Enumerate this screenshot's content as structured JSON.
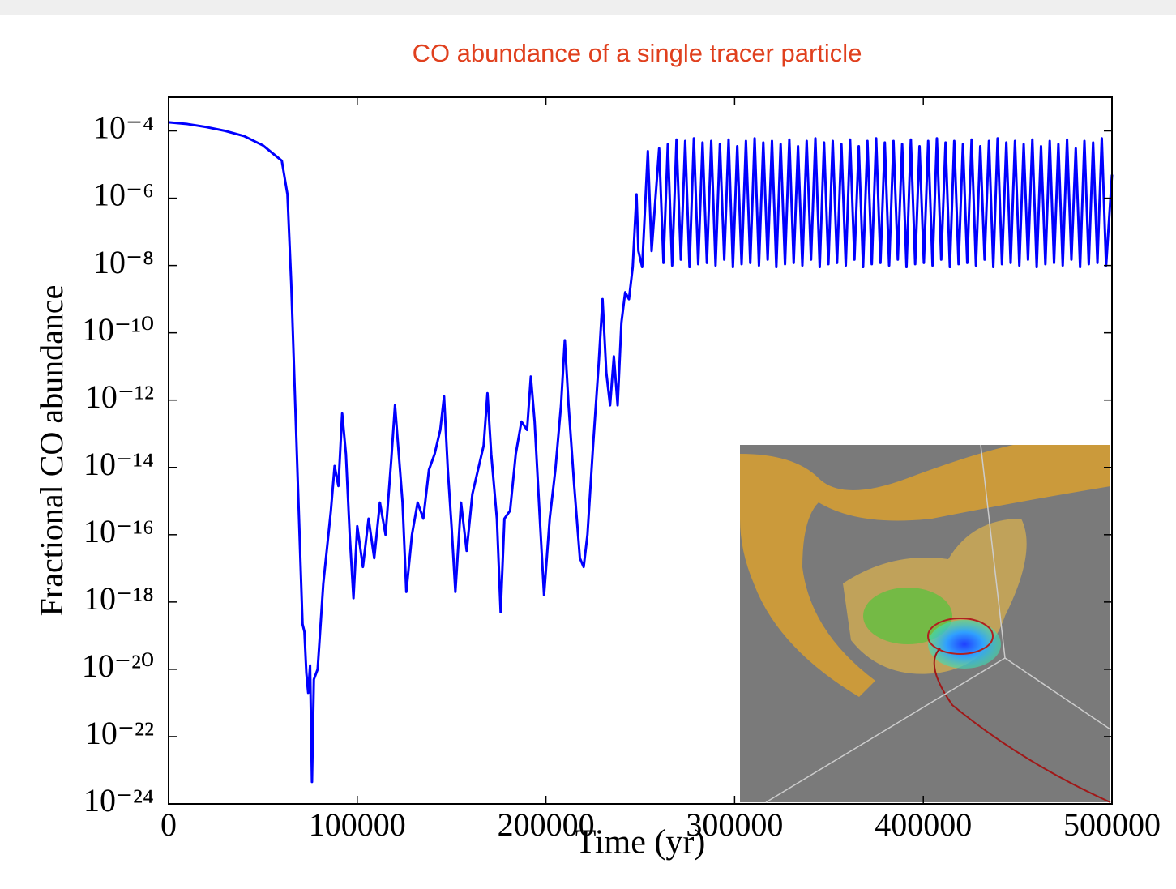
{
  "chart_data": {
    "type": "line",
    "title": "CO abundance of a single tracer particle",
    "title_color": "#e0401e",
    "xlabel": "Time (yr)",
    "ylabel": "Fractional CO abundance",
    "yscale": "log",
    "xlim": [
      0,
      500000
    ],
    "ylim": [
      1e-24,
      0.001
    ],
    "xticks": [
      0,
      100000,
      200000,
      300000,
      400000,
      500000
    ],
    "yticks": [
      {
        "value": 1e-24,
        "label": "10⁻²⁴"
      },
      {
        "value": 1e-22,
        "label": "10⁻²²"
      },
      {
        "value": 1e-20,
        "label": "10⁻²⁰"
      },
      {
        "value": 1e-18,
        "label": "10⁻¹⁸"
      },
      {
        "value": 1e-16,
        "label": "10⁻¹⁶"
      },
      {
        "value": 1e-14,
        "label": "10⁻¹⁴"
      },
      {
        "value": 1e-12,
        "label": "10⁻¹²"
      },
      {
        "value": 1e-10,
        "label": "10⁻¹⁰"
      },
      {
        "value": 1e-08,
        "label": "10⁻⁸"
      },
      {
        "value": 1e-06,
        "label": "10⁻⁶"
      },
      {
        "value": 0.0001,
        "label": "10⁻⁴"
      }
    ],
    "series": [
      {
        "color": "#0000ff",
        "x": [
          0,
          10000,
          20000,
          30000,
          40000,
          50000,
          60000,
          63000,
          65000,
          68000,
          71000,
          72000,
          73000,
          74000,
          75000,
          76000,
          77000,
          79000,
          82000,
          86000,
          88000,
          90000,
          92000,
          94000,
          96000,
          98000,
          100000,
          103000,
          106000,
          109000,
          112000,
          115000,
          118000,
          120000,
          122000,
          124000,
          126000,
          129000,
          132000,
          135000,
          138000,
          141000,
          144000,
          146000,
          148000,
          150000,
          152000,
          155000,
          158000,
          161000,
          164000,
          167000,
          169000,
          171000,
          174000,
          176000,
          178000,
          181000,
          184000,
          187000,
          190000,
          192000,
          194000,
          197000,
          199000,
          202000,
          205000,
          208000,
          210000,
          212000,
          215000,
          218000,
          220000,
          222000,
          225000,
          228000,
          230000,
          232000,
          234000,
          236000,
          238000,
          240000,
          242000,
          244000,
          246000,
          248000,
          249000,
          251000,
          254000,
          256000,
          260000,
          262300,
          264600,
          266900,
          269200,
          271500,
          273800,
          276100,
          278400,
          280700,
          283000,
          285300,
          287600,
          289900,
          292200,
          294500,
          296800,
          299100,
          301400,
          303700,
          306000,
          308300,
          310600,
          312900,
          315200,
          317500,
          319800,
          322100,
          324400,
          326700,
          329000,
          331300,
          333600,
          335900,
          338200,
          340500,
          342800,
          345100,
          347400,
          349700,
          352000,
          354300,
          356600,
          358900,
          361200,
          363500,
          365800,
          368100,
          370400,
          372700,
          375000,
          377300,
          379600,
          381900,
          384200,
          386500,
          388800,
          391100,
          393400,
          395700,
          398000,
          400300,
          402600,
          404900,
          407200,
          409500,
          411800,
          414100,
          416400,
          418700,
          421000,
          423300,
          425600,
          427900,
          430200,
          432500,
          434800,
          437100,
          439400,
          441700,
          444000,
          446300,
          448600,
          450900,
          453200,
          455500,
          457800,
          460100,
          462400,
          464700,
          467000,
          469300,
          471600,
          473900,
          476200,
          478500,
          480800,
          483100,
          485400,
          487700,
          490000,
          492300,
          494600,
          496900,
          500000
        ],
        "values": [
          0.00018,
          0.00016,
          0.00013,
          0.0001,
          7e-05,
          3.7e-05,
          1.3e-05,
          1.3e-06,
          3e-09,
          2.5e-14,
          2.2e-19,
          1.3e-19,
          8e-21,
          2e-21,
          1.3e-20,
          4.5e-24,
          5e-21,
          1e-20,
          3.5e-18,
          5e-16,
          1.1e-14,
          2.8e-15,
          4e-13,
          2.5e-14,
          1e-16,
          1.3e-18,
          1.8e-16,
          1.1e-17,
          3e-16,
          2e-17,
          9e-16,
          1e-16,
          1.6e-14,
          7e-13,
          2.5e-14,
          9e-16,
          2e-18,
          1e-16,
          9e-16,
          3e-16,
          8.5e-15,
          2.5e-14,
          1.3e-13,
          1.3e-12,
          8.5e-15,
          1.7e-16,
          2e-18,
          9e-16,
          3.3e-17,
          1.6e-15,
          8.5e-15,
          4.5e-14,
          1.6e-12,
          2.5e-14,
          3e-16,
          5e-19,
          3e-16,
          5.2e-16,
          2.5e-14,
          2.3e-13,
          1.3e-13,
          5e-12,
          2.3e-13,
          1.7e-16,
          1.6e-18,
          3e-16,
          8.5e-15,
          7e-13,
          6e-11,
          7e-13,
          2.8e-15,
          2e-17,
          1.1e-17,
          1e-16,
          4.5e-14,
          1.3e-11,
          1e-09,
          6.6e-12,
          7e-13,
          2e-11,
          7e-13,
          2e-10,
          1.6e-09,
          1e-09,
          9e-09,
          1.3e-06,
          2.7e-08,
          9e-09,
          2.5e-05,
          2.7e-08,
          3e-05,
          1.2e-08,
          4e-05,
          1e-08,
          5.5e-05,
          1.5e-08,
          5e-05,
          9e-09,
          6e-05,
          1.1e-08,
          4.5e-05,
          1.2e-08,
          5e-05,
          1e-08,
          4e-05,
          1.5e-08,
          5.5e-05,
          9e-09,
          3.5e-05,
          1.1e-08,
          5e-05,
          1.2e-08,
          6e-05,
          1e-08,
          4.5e-05,
          1.5e-08,
          5e-05,
          9e-09,
          4e-05,
          1.1e-08,
          5.5e-05,
          1.2e-08,
          3.5e-05,
          1e-08,
          5e-05,
          1.5e-08,
          6e-05,
          9e-09,
          4.5e-05,
          1.1e-08,
          5e-05,
          1.2e-08,
          4e-05,
          1e-08,
          5.5e-05,
          1.5e-08,
          3.5e-05,
          9e-09,
          5e-05,
          1.1e-08,
          6e-05,
          1.2e-08,
          4.5e-05,
          1e-08,
          5e-05,
          1.5e-08,
          4e-05,
          9e-09,
          5.5e-05,
          1.1e-08,
          3.5e-05,
          1.2e-08,
          5e-05,
          1e-08,
          6e-05,
          1.5e-08,
          4.5e-05,
          9e-09,
          5e-05,
          1.1e-08,
          4e-05,
          1.2e-08,
          5.5e-05,
          1e-08,
          3.5e-05,
          1.5e-08,
          5e-05,
          9e-09,
          6e-05,
          1.1e-08,
          4.5e-05,
          1.2e-08,
          5e-05,
          1e-08,
          4e-05,
          1.5e-08,
          5.5e-05,
          9e-09,
          3.5e-05,
          1.1e-08,
          5e-05,
          1.2e-08,
          4e-05,
          1e-08,
          5.5e-05,
          1.5e-08,
          3e-05,
          9e-09,
          5e-05,
          1.1e-08,
          4.5e-05,
          1.2e-08,
          6e-05,
          1e-08,
          5e-06
        ]
      }
    ]
  }
}
